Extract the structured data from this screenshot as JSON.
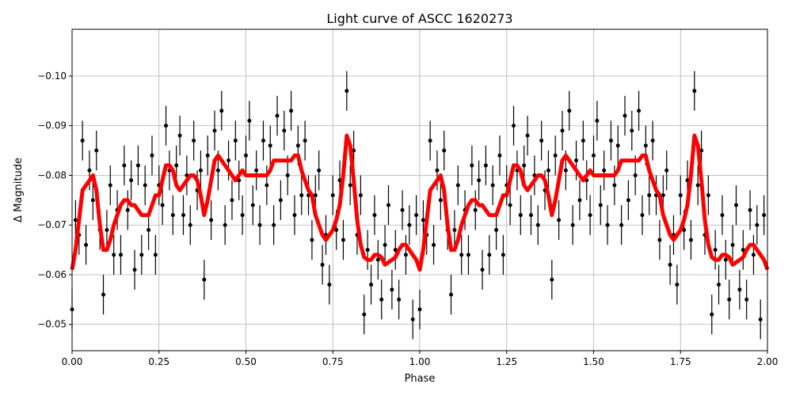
{
  "chart_data": {
    "type": "scatter",
    "title": "Light curve of ASCC 1620273",
    "xlabel": "Phase",
    "ylabel": "Δ Magnitude",
    "xlim": [
      0,
      2
    ],
    "ylim": [
      -0.1094,
      -0.0447
    ],
    "y_inverted": true,
    "grid": true,
    "xticks": [
      "0.00",
      "0.25",
      "0.50",
      "0.75",
      "1.00",
      "1.25",
      "1.50",
      "1.75",
      "2.00"
    ],
    "xtick_values": [
      0,
      0.25,
      0.5,
      0.75,
      1,
      1.25,
      1.5,
      1.75,
      2
    ],
    "yticks": [
      "−0.10",
      "−0.09",
      "−0.08",
      "−0.07",
      "−0.06",
      "−0.05"
    ],
    "ytick_values": [
      -0.1,
      -0.09,
      -0.08,
      -0.07,
      -0.06,
      -0.05
    ],
    "colors": {
      "points": "#000000",
      "model": "#ff0000",
      "grid": "#b0b0b0"
    },
    "observations": {
      "repeat_phase_span": 2,
      "error": 0.004,
      "phase": [
        0.0,
        0.01,
        0.02,
        0.03,
        0.04,
        0.05,
        0.06,
        0.07,
        0.08,
        0.09,
        0.1,
        0.11,
        0.12,
        0.13,
        0.14,
        0.15,
        0.16,
        0.17,
        0.18,
        0.19,
        0.2,
        0.21,
        0.22,
        0.23,
        0.24,
        0.25,
        0.26,
        0.27,
        0.28,
        0.29,
        0.3,
        0.31,
        0.32,
        0.33,
        0.34,
        0.35,
        0.36,
        0.37,
        0.38,
        0.39,
        0.4,
        0.41,
        0.42,
        0.43,
        0.44,
        0.45,
        0.46,
        0.47,
        0.48,
        0.49,
        0.5,
        0.51,
        0.52,
        0.53,
        0.54,
        0.55,
        0.56,
        0.57,
        0.58,
        0.59,
        0.6,
        0.61,
        0.62,
        0.63,
        0.64,
        0.65,
        0.66,
        0.67,
        0.68,
        0.69,
        0.7,
        0.71,
        0.72,
        0.73,
        0.74,
        0.75,
        0.76,
        0.77,
        0.78,
        0.79,
        0.8,
        0.81,
        0.82,
        0.83,
        0.84,
        0.85,
        0.86,
        0.87,
        0.88,
        0.89,
        0.9,
        0.91,
        0.92,
        0.93,
        0.94,
        0.95,
        0.96,
        0.97,
        0.98,
        0.99
      ],
      "mag": [
        -0.053,
        -0.071,
        -0.068,
        -0.087,
        -0.066,
        -0.081,
        -0.075,
        -0.085,
        -0.069,
        -0.056,
        -0.069,
        -0.078,
        -0.064,
        -0.073,
        -0.064,
        -0.082,
        -0.073,
        -0.079,
        -0.061,
        -0.082,
        -0.064,
        -0.078,
        -0.069,
        -0.084,
        -0.064,
        -0.078,
        -0.074,
        -0.09,
        -0.081,
        -0.072,
        -0.082,
        -0.088,
        -0.072,
        -0.08,
        -0.07,
        -0.087,
        -0.077,
        -0.081,
        -0.059,
        -0.084,
        -0.071,
        -0.089,
        -0.081,
        -0.093,
        -0.07,
        -0.083,
        -0.075,
        -0.087,
        -0.079,
        -0.072,
        -0.084,
        -0.091,
        -0.074,
        -0.081,
        -0.07,
        -0.087,
        -0.078,
        -0.086,
        -0.07,
        -0.092,
        -0.075,
        -0.089,
        -0.08,
        -0.093,
        -0.072,
        -0.086,
        -0.076,
        -0.087,
        -0.076,
        -0.067,
        -0.076,
        -0.081,
        -0.062,
        -0.068,
        -0.058,
        -0.076,
        -0.069,
        -0.079,
        -0.067,
        -0.097,
        -0.078,
        -0.085,
        -0.068,
        -0.076,
        -0.052,
        -0.065,
        -0.058,
        -0.072,
        -0.063,
        -0.055,
        -0.066,
        -0.074,
        -0.057,
        -0.065,
        -0.055,
        -0.073,
        -0.064,
        -0.07,
        -0.051,
        -0.072
      ]
    },
    "model": {
      "repeat_phase_span": 2,
      "phase": [
        0.0,
        0.01,
        0.02,
        0.03,
        0.04,
        0.05,
        0.06,
        0.07,
        0.08,
        0.09,
        0.1,
        0.11,
        0.12,
        0.13,
        0.14,
        0.15,
        0.16,
        0.17,
        0.18,
        0.19,
        0.2,
        0.21,
        0.22,
        0.23,
        0.24,
        0.25,
        0.26,
        0.27,
        0.28,
        0.29,
        0.3,
        0.31,
        0.32,
        0.33,
        0.34,
        0.35,
        0.36,
        0.37,
        0.38,
        0.39,
        0.4,
        0.41,
        0.42,
        0.43,
        0.44,
        0.45,
        0.46,
        0.47,
        0.48,
        0.49,
        0.5,
        0.51,
        0.52,
        0.53,
        0.54,
        0.55,
        0.56,
        0.57,
        0.58,
        0.59,
        0.6,
        0.61,
        0.62,
        0.63,
        0.64,
        0.65,
        0.66,
        0.67,
        0.68,
        0.69,
        0.7,
        0.71,
        0.72,
        0.73,
        0.74,
        0.75,
        0.76,
        0.77,
        0.78,
        0.79,
        0.8,
        0.81,
        0.82,
        0.83,
        0.84,
        0.85,
        0.86,
        0.87,
        0.88,
        0.89,
        0.9,
        0.91,
        0.92,
        0.93,
        0.94,
        0.95,
        0.96,
        0.97,
        0.98,
        0.99,
        1.0
      ],
      "mag": [
        -0.061,
        -0.065,
        -0.071,
        -0.077,
        -0.078,
        -0.079,
        -0.08,
        -0.077,
        -0.07,
        -0.065,
        -0.065,
        -0.067,
        -0.07,
        -0.072,
        -0.074,
        -0.075,
        -0.075,
        -0.074,
        -0.074,
        -0.073,
        -0.072,
        -0.072,
        -0.072,
        -0.074,
        -0.076,
        -0.076,
        -0.079,
        -0.082,
        -0.082,
        -0.081,
        -0.078,
        -0.077,
        -0.078,
        -0.079,
        -0.08,
        -0.08,
        -0.079,
        -0.076,
        -0.072,
        -0.075,
        -0.079,
        -0.083,
        -0.084,
        -0.083,
        -0.082,
        -0.081,
        -0.08,
        -0.079,
        -0.08,
        -0.081,
        -0.08,
        -0.08,
        -0.08,
        -0.08,
        -0.08,
        -0.08,
        -0.08,
        -0.081,
        -0.083,
        -0.083,
        -0.083,
        -0.083,
        -0.083,
        -0.083,
        -0.084,
        -0.084,
        -0.081,
        -0.079,
        -0.077,
        -0.076,
        -0.072,
        -0.07,
        -0.068,
        -0.067,
        -0.068,
        -0.069,
        -0.071,
        -0.074,
        -0.08,
        -0.088,
        -0.086,
        -0.079,
        -0.071,
        -0.066,
        -0.0635,
        -0.063,
        -0.063,
        -0.064,
        -0.064,
        -0.0635,
        -0.062,
        -0.0625,
        -0.063,
        -0.0635,
        -0.065,
        -0.066,
        -0.066,
        -0.065,
        -0.064,
        -0.063,
        -0.061
      ]
    }
  }
}
